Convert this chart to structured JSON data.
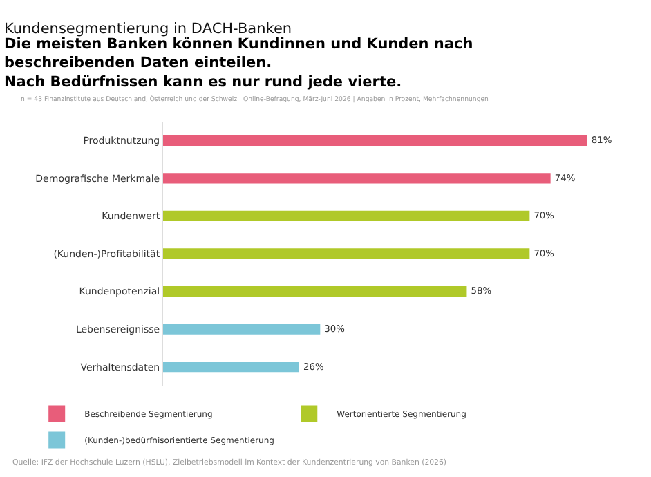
{
  "chart_data": {
    "type": "bar",
    "orientation": "horizontal",
    "title": "Kundensegmentierung in DACH-Banken",
    "subtitle": "Die meisten Banken können Kundinnen und Kunden nach\nbeschreibenden Daten einteilen.\nNach Bedürfnissen kann es nur rund jede vierte.",
    "annotations": [
      "n = 43 Finanzinstitute aus Deutschland, Österreich und der Schweiz | Online-Befragung, März-Juni 2026 | Angaben in Prozent, Mehrfachnennungen",
      "Quelle: IFZ der Hochschule Luzern (HSLU), Zielbetriebsmodell im Kontext der Kundenzentrierung von Banken (2026)"
    ],
    "categories": [
      "Produktnutzung",
      "Demografische Merkmale",
      "Kundenwert",
      "(Kunden-)Profitabilität",
      "Kundenpotenzial",
      "Lebensereignisse",
      "Verhaltensdaten"
    ],
    "series": [
      {
        "name": "Beschreibende Segmentierung",
        "color": "#e85d7a",
        "values": [
          81,
          74,
          null,
          null,
          null,
          null,
          null
        ],
        "value_labels": [
          "81%",
          "74%",
          null,
          null,
          null,
          null,
          null
        ]
      },
      {
        "name": "Wertorientierte Segmentierung",
        "color": "#b0c929",
        "values": [
          null,
          null,
          70,
          70,
          58,
          null,
          null
        ],
        "value_labels": [
          null,
          null,
          "70%",
          "70%",
          "58%",
          null,
          null
        ]
      },
      {
        "name": "(Kunden-)bedürfnisorientierte Segmentierung",
        "color": "#7cc6d8",
        "values": [
          null,
          null,
          null,
          null,
          null,
          30,
          26
        ],
        "value_labels": [
          null,
          null,
          null,
          null,
          null,
          "30%",
          "26%"
        ]
      }
    ],
    "legend": "bottom",
    "grid": false
  }
}
